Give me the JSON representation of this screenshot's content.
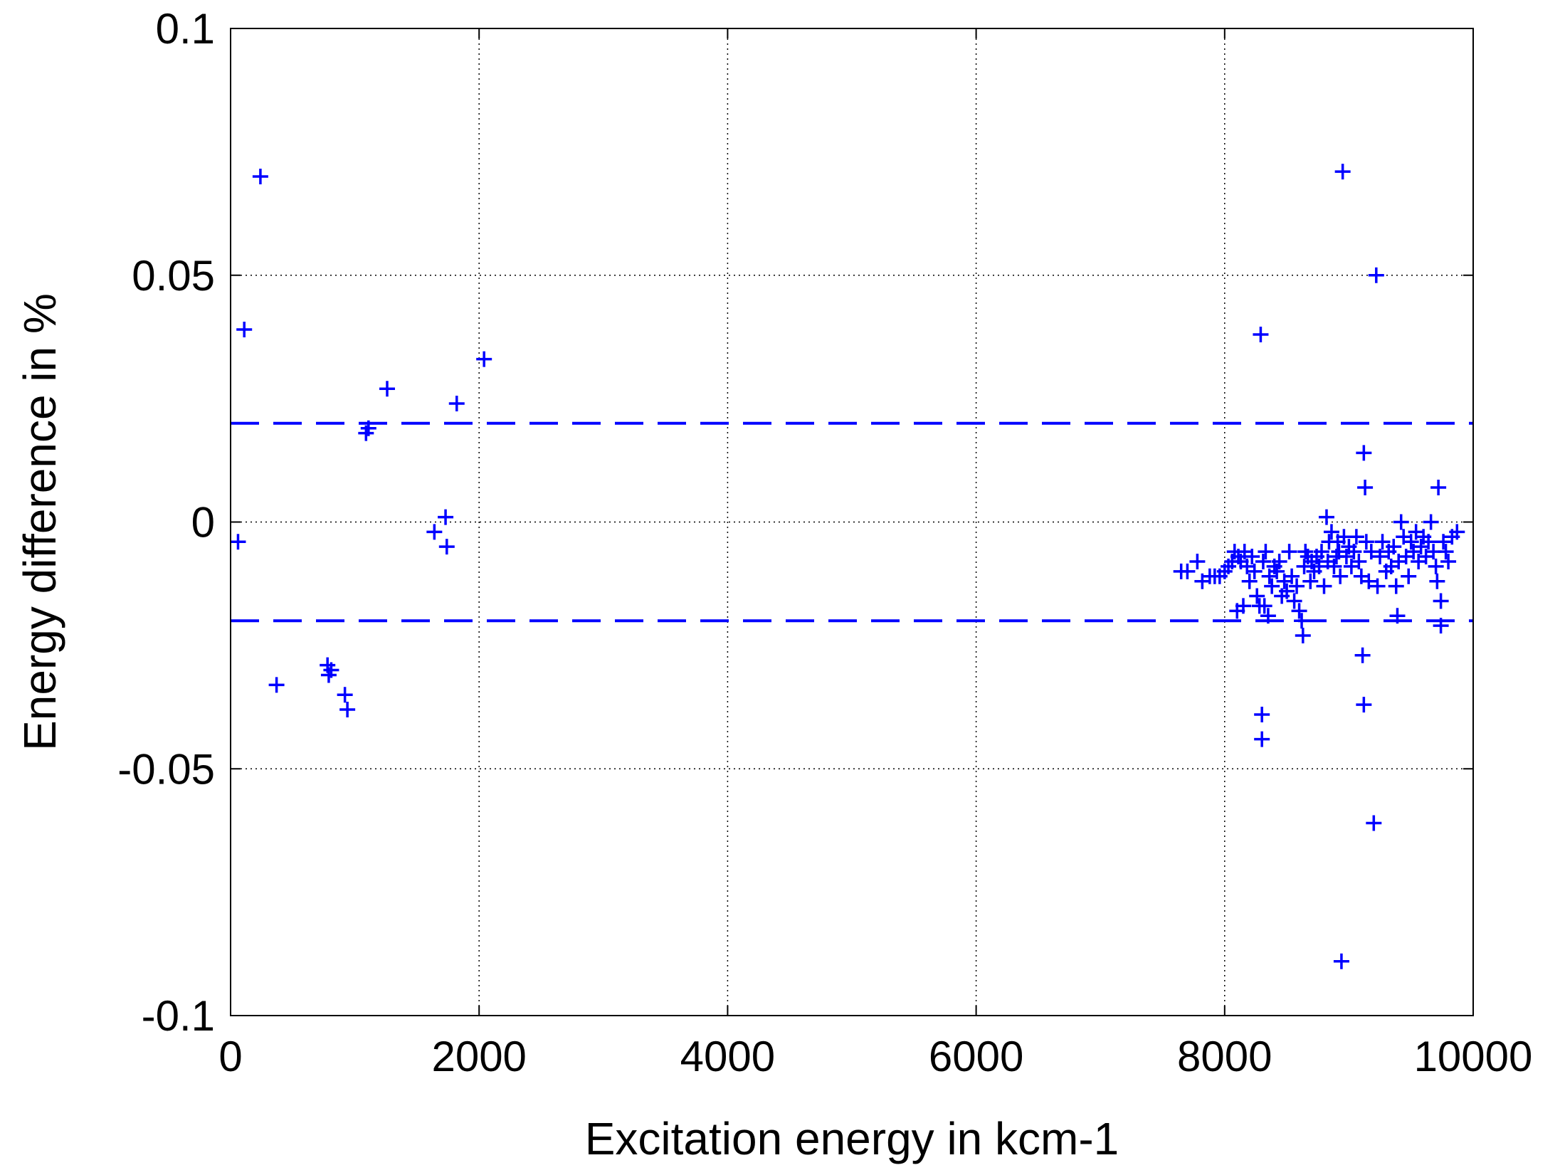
{
  "chart_data": {
    "type": "scatter",
    "title": "",
    "xlabel": "Excitation energy in kcm-1",
    "ylabel": "Energy difference in %",
    "xlim": [
      0,
      10000
    ],
    "ylim": [
      -0.1,
      0.1
    ],
    "x_ticks": [
      0,
      2000,
      4000,
      6000,
      8000,
      10000
    ],
    "y_ticks": [
      -0.1,
      -0.05,
      0,
      0.05,
      0.1
    ],
    "x_tick_labels": [
      "0",
      "2000",
      "4000",
      "6000",
      "8000",
      "10000"
    ],
    "y_tick_labels": [
      "-0.1",
      "-0.05",
      "0",
      "0.05",
      "0.1"
    ],
    "grid": true,
    "marker": "+",
    "colors": {
      "points": "#0000ff",
      "threshold": "#0000ff",
      "grid": "#000000"
    },
    "reference_lines": [
      {
        "y": 0.02,
        "style": "dashed"
      },
      {
        "y": -0.02,
        "style": "dashed"
      }
    ],
    "points": [
      [
        60,
        -0.004
      ],
      [
        110,
        0.039
      ],
      [
        240,
        0.07
      ],
      [
        370,
        -0.033
      ],
      [
        780,
        -0.029
      ],
      [
        790,
        -0.031
      ],
      [
        810,
        -0.03
      ],
      [
        920,
        -0.035
      ],
      [
        940,
        -0.038
      ],
      [
        1090,
        0.018
      ],
      [
        1110,
        0.019
      ],
      [
        1260,
        0.027
      ],
      [
        1640,
        -0.002
      ],
      [
        1730,
        0.001
      ],
      [
        1740,
        -0.005
      ],
      [
        1820,
        0.024
      ],
      [
        2040,
        0.033
      ],
      [
        7650,
        -0.01
      ],
      [
        7700,
        -0.01
      ],
      [
        7780,
        -0.008
      ],
      [
        7820,
        -0.012
      ],
      [
        7880,
        -0.011
      ],
      [
        7920,
        -0.011
      ],
      [
        7960,
        -0.011
      ],
      [
        8000,
        -0.01
      ],
      [
        8030,
        -0.009
      ],
      [
        8060,
        -0.008
      ],
      [
        8080,
        -0.006
      ],
      [
        8100,
        -0.018
      ],
      [
        8110,
        -0.007
      ],
      [
        8130,
        -0.008
      ],
      [
        8150,
        -0.017
      ],
      [
        8160,
        -0.006
      ],
      [
        8180,
        -0.009
      ],
      [
        8200,
        -0.012
      ],
      [
        8220,
        -0.007
      ],
      [
        8240,
        -0.01
      ],
      [
        8260,
        -0.015
      ],
      [
        8280,
        -0.017
      ],
      [
        8290,
        0.038
      ],
      [
        8300,
        -0.039
      ],
      [
        8300,
        -0.044
      ],
      [
        8310,
        -0.008
      ],
      [
        8320,
        -0.017
      ],
      [
        8330,
        -0.006
      ],
      [
        8350,
        -0.019
      ],
      [
        8360,
        -0.011
      ],
      [
        8380,
        -0.013
      ],
      [
        8400,
        -0.009
      ],
      [
        8420,
        -0.01
      ],
      [
        8440,
        -0.008
      ],
      [
        8460,
        -0.015
      ],
      [
        8480,
        -0.012
      ],
      [
        8500,
        -0.014
      ],
      [
        8520,
        -0.006
      ],
      [
        8540,
        -0.011
      ],
      [
        8560,
        -0.016
      ],
      [
        8580,
        -0.013
      ],
      [
        8600,
        -0.018
      ],
      [
        8620,
        -0.02
      ],
      [
        8630,
        -0.023
      ],
      [
        8640,
        -0.009
      ],
      [
        8650,
        -0.006
      ],
      [
        8670,
        -0.007
      ],
      [
        8690,
        -0.012
      ],
      [
        8700,
        -0.008
      ],
      [
        8720,
        -0.01
      ],
      [
        8740,
        -0.007
      ],
      [
        8760,
        -0.009
      ],
      [
        8780,
        -0.006
      ],
      [
        8800,
        -0.013
      ],
      [
        8820,
        0.001
      ],
      [
        8830,
        -0.008
      ],
      [
        8840,
        -0.004
      ],
      [
        8860,
        -0.002
      ],
      [
        8880,
        -0.009
      ],
      [
        8900,
        -0.007
      ],
      [
        8910,
        -0.004
      ],
      [
        8920,
        -0.006
      ],
      [
        8930,
        -0.011
      ],
      [
        8940,
        -0.089
      ],
      [
        8950,
        0.071
      ],
      [
        8960,
        -0.003
      ],
      [
        8980,
        -0.007
      ],
      [
        9000,
        -0.005
      ],
      [
        9020,
        -0.009
      ],
      [
        9040,
        -0.006
      ],
      [
        9060,
        -0.003
      ],
      [
        9080,
        -0.008
      ],
      [
        9100,
        -0.011
      ],
      [
        9110,
        -0.027
      ],
      [
        9120,
        0.014
      ],
      [
        9120,
        -0.037
      ],
      [
        9130,
        0.007
      ],
      [
        9140,
        -0.004
      ],
      [
        9160,
        -0.012
      ],
      [
        9180,
        -0.006
      ],
      [
        9200,
        -0.061
      ],
      [
        9220,
        0.05
      ],
      [
        9230,
        -0.013
      ],
      [
        9250,
        -0.007
      ],
      [
        9270,
        -0.004
      ],
      [
        9300,
        -0.01
      ],
      [
        9320,
        -0.006
      ],
      [
        9340,
        -0.009
      ],
      [
        9360,
        -0.005
      ],
      [
        9380,
        -0.013
      ],
      [
        9390,
        -0.019
      ],
      [
        9400,
        -0.008
      ],
      [
        9420,
        0.0
      ],
      [
        9440,
        -0.003
      ],
      [
        9460,
        -0.007
      ],
      [
        9480,
        -0.011
      ],
      [
        9500,
        -0.004
      ],
      [
        9520,
        -0.006
      ],
      [
        9540,
        -0.002
      ],
      [
        9560,
        -0.008
      ],
      [
        9580,
        -0.005
      ],
      [
        9600,
        -0.003
      ],
      [
        9620,
        -0.007
      ],
      [
        9640,
        -0.004
      ],
      [
        9660,
        0.0
      ],
      [
        9680,
        -0.006
      ],
      [
        9700,
        -0.009
      ],
      [
        9710,
        -0.012
      ],
      [
        9720,
        0.007
      ],
      [
        9740,
        -0.016
      ],
      [
        9740,
        -0.021
      ],
      [
        9760,
        -0.004
      ],
      [
        9780,
        -0.006
      ],
      [
        9800,
        -0.008
      ],
      [
        9830,
        -0.003
      ],
      [
        9870,
        -0.002
      ]
    ]
  }
}
